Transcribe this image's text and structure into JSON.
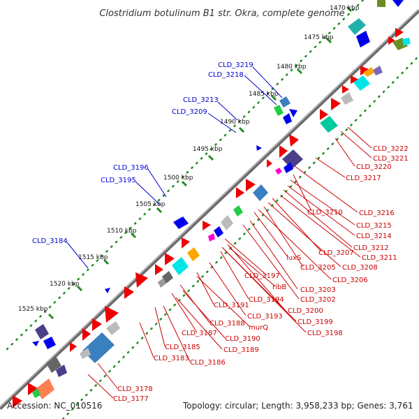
{
  "header": {
    "title": "Clostridium botulinum B1 str. Okra, complete genome"
  },
  "footer": {
    "accession": "Accession: NC_010516",
    "summary": "Topology: circular; Length: 3,958,233 bp; Genes: 3,761"
  },
  "colors": {
    "forward_label": "#0000cc",
    "reverse_label": "#cc0000",
    "backbone": "#666666",
    "tick_dots": "#228b22"
  },
  "ticks": [
    "1470 kbp",
    "1475 kbp",
    "1480 kbp",
    "1485 kbp",
    "1490 kbp",
    "1495 kbp",
    "1500 kbp",
    "1505 kbp",
    "1510 kbp",
    "1515 kbp",
    "1520 kbp",
    "1525 kbp"
  ],
  "labels_forward": [
    "CLD_3219",
    "CLD_3218",
    "CLD_3213",
    "CLD_3209",
    "CLD_3196",
    "CLD_3195",
    "CLD_3184"
  ],
  "labels_reverse": [
    "CLD_3222",
    "CLD_3221",
    "CLD_3220",
    "CLD_3217",
    "CLD_3216",
    "CLD_3210",
    "CLD_3215",
    "CLD_3214",
    "CLD_3212",
    "CLD_3207",
    "CLD_3211",
    "CLD_3205",
    "CLD_3208",
    "luxS",
    "CLD_3206",
    "CLD_3197",
    "ribB",
    "CLD_3203",
    "CLD_3202",
    "CLD_3194",
    "CLD_3191",
    "CLD_3200",
    "CLD_3193",
    "CLD_3199",
    "CLD_3188",
    "murQ",
    "CLD_3198",
    "CLD_3187",
    "CLD_3190",
    "CLD_3185",
    "CLD_3189",
    "CLD_3183",
    "CLD_3186",
    "CLD_3178",
    "CLD_3177"
  ]
}
